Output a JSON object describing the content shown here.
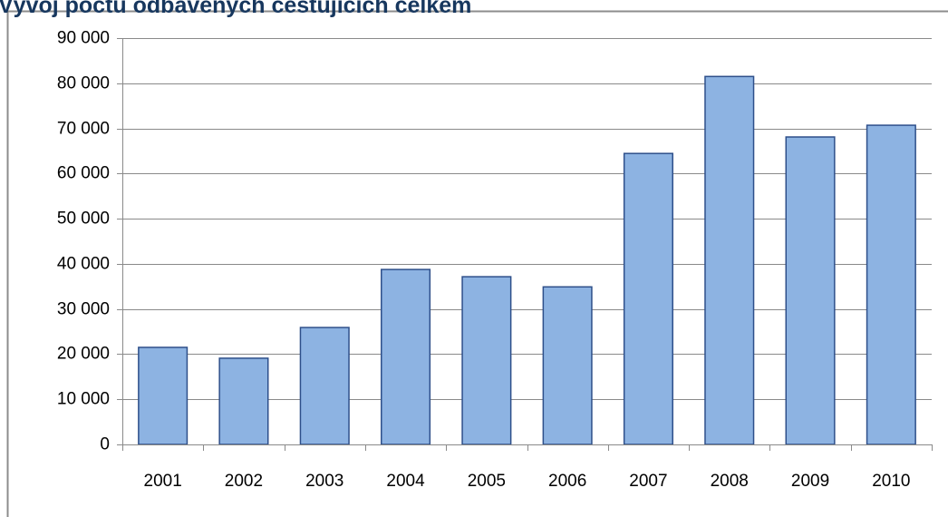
{
  "chart_data": {
    "type": "bar",
    "title": "Vývoj počtu odbavených cestujících celkem",
    "categories": [
      "2001",
      "2002",
      "2003",
      "2004",
      "2005",
      "2006",
      "2007",
      "2008",
      "2009",
      "2010"
    ],
    "values": [
      21500,
      19100,
      25900,
      38750,
      37150,
      34900,
      64450,
      81500,
      68100,
      70700
    ],
    "color": "#8db3e2",
    "ylim": [
      0,
      90000
    ],
    "yticks": [
      0,
      {
        "value": 10000,
        "label": "10 000"
      },
      {
        "value": 20000,
        "label": "20 000"
      },
      {
        "value": 30000,
        "label": "30 000"
      },
      {
        "value": 40000,
        "label": "40 000"
      },
      {
        "value": 50000,
        "label": "50 000"
      },
      {
        "value": 60000,
        "label": "60 000"
      },
      {
        "value": 70000,
        "label": "70 000"
      },
      {
        "value": 80000,
        "label": "80 000"
      },
      {
        "value": 90000,
        "label": "90 000"
      }
    ],
    "grid": true
  }
}
